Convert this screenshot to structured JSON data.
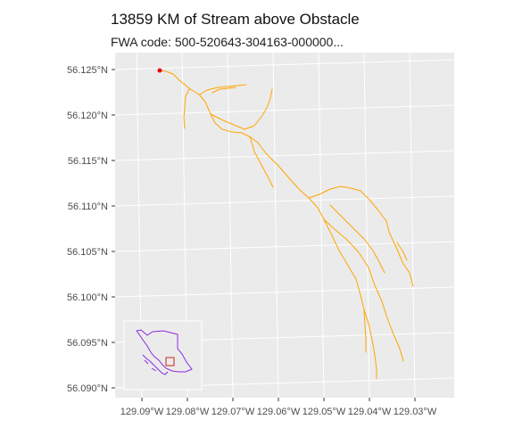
{
  "title": "13859 KM of Stream above Obstacle",
  "subtitle": "FWA code: 500-520643-304163-000000...",
  "colors": {
    "panel": "#ebebeb",
    "grid": "#ffffff",
    "stream": "#ffa500",
    "obstacle": "#e8000b",
    "province": "#8b2be2",
    "locator": "#cc2222"
  },
  "axes": {
    "y_labels": [
      "56.125°N",
      "56.120°N",
      "56.115°N",
      "56.110°N",
      "56.105°N",
      "56.100°N",
      "56.095°N",
      "56.090°N"
    ],
    "x_labels": [
      "129.09°W",
      "129.08°W",
      "129.07°W",
      "129.06°W",
      "129.05°W",
      "129.04°W",
      "129.03°W"
    ]
  },
  "legend_inset": "bottom-left"
}
